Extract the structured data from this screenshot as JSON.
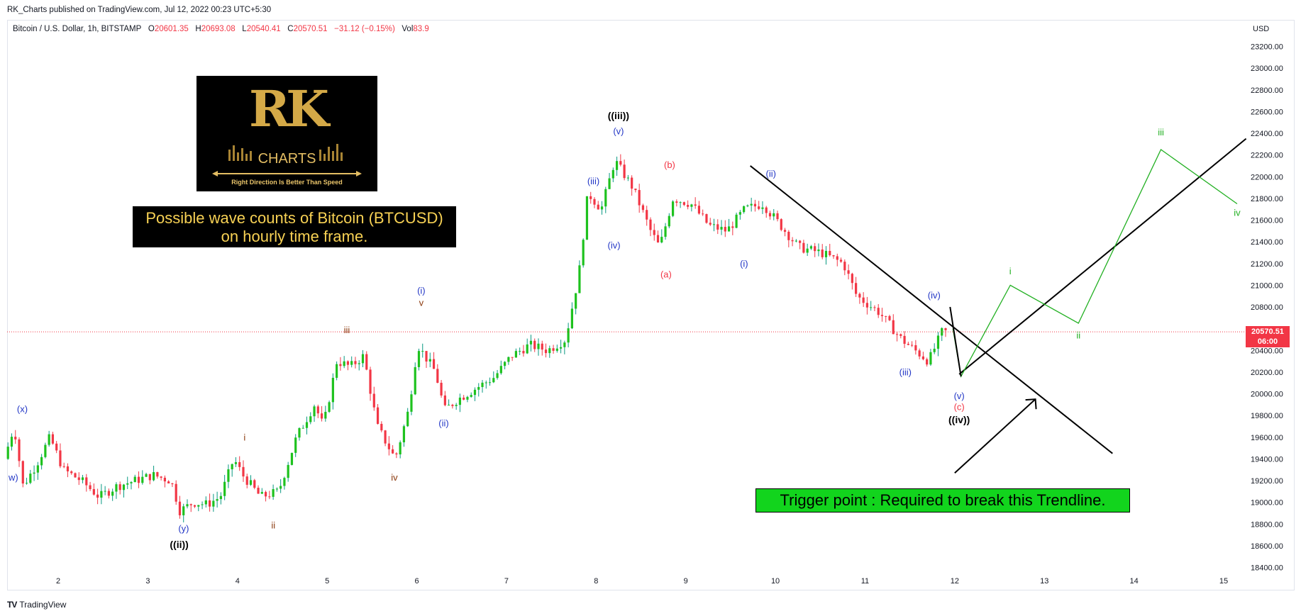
{
  "header": {
    "published_text": "RK_Charts published on TradingView.com, Jul 12, 2022 00:23 UTC+5:30"
  },
  "legend": {
    "symbol": "Bitcoin / U.S. Dollar, 1h, BITSTAMP",
    "open_label": "O",
    "open": "20601.35",
    "high_label": "H",
    "high": "20693.08",
    "low_label": "L",
    "low": "20540.41",
    "close_label": "C",
    "close": "20570.51",
    "change": "−31.12 (−0.15%)",
    "vol_label": "Vol",
    "vol": "83.9"
  },
  "currency": "USD",
  "price_tag": {
    "price": "20570.51",
    "countdown": "06:00"
  },
  "logo": {
    "letters": "RK",
    "name": "CHARTS",
    "tagline": "Right Direction Is Better Than Speed"
  },
  "wave_note": {
    "line1": "Possible wave counts of Bitcoin (BTCUSD)",
    "line2": "on hourly time frame."
  },
  "trigger_note": "Trigger point : Required to break this Trendline.",
  "footer": {
    "brand": "TradingView"
  },
  "colors": {
    "up": "#089981",
    "up_body": "#1ec21e",
    "down": "#f23645",
    "blue": "#2337c6",
    "brown": "#8b3a0e",
    "green": "#22b022",
    "red": "#f23645",
    "black": "#000000",
    "axis_text": "#131722"
  },
  "chart_data": {
    "type": "candlestick",
    "symbol": "BTCUSD",
    "interval": "1h",
    "ylabel": "USD",
    "ylim": [
      18300,
      23300
    ],
    "y_ticks": [
      18400,
      18600,
      18800,
      19000,
      19200,
      19400,
      19600,
      19800,
      20000,
      20200,
      20400,
      20600,
      20800,
      21000,
      21200,
      21400,
      21600,
      21800,
      22000,
      22200,
      22400,
      22600,
      22800,
      23000,
      23200
    ],
    "x_ticks": [
      "2",
      "3",
      "4",
      "5",
      "6",
      "7",
      "8",
      "9",
      "10",
      "11",
      "12",
      "13",
      "14",
      "15"
    ],
    "xlim": [
      1.43,
      15.25
    ],
    "last_price": 20570.51,
    "price_path": [
      [
        1.44,
        19400
      ],
      [
        1.55,
        19700
      ],
      [
        1.65,
        19150
      ],
      [
        1.8,
        19350
      ],
      [
        1.95,
        19600
      ],
      [
        2.1,
        19300
      ],
      [
        2.3,
        19200
      ],
      [
        2.5,
        19050
      ],
      [
        2.7,
        19150
      ],
      [
        2.9,
        19200
      ],
      [
        3.1,
        19250
      ],
      [
        3.3,
        19200
      ],
      [
        3.4,
        18920
      ],
      [
        3.55,
        19000
      ],
      [
        3.7,
        18980
      ],
      [
        3.85,
        19050
      ],
      [
        4.0,
        19400
      ],
      [
        4.1,
        19250
      ],
      [
        4.3,
        19050
      ],
      [
        4.5,
        19100
      ],
      [
        4.7,
        19600
      ],
      [
        4.9,
        19900
      ],
      [
        5.0,
        19700
      ],
      [
        5.15,
        20300
      ],
      [
        5.3,
        20250
      ],
      [
        5.45,
        20350
      ],
      [
        5.6,
        19700
      ],
      [
        5.8,
        19400
      ],
      [
        5.95,
        19850
      ],
      [
        6.05,
        20450
      ],
      [
        6.25,
        20200
      ],
      [
        6.35,
        19850
      ],
      [
        6.5,
        19950
      ],
      [
        6.7,
        20050
      ],
      [
        6.9,
        20150
      ],
      [
        7.1,
        20350
      ],
      [
        7.3,
        20450
      ],
      [
        7.5,
        20400
      ],
      [
        7.7,
        20500
      ],
      [
        7.85,
        21100
      ],
      [
        7.95,
        21850
      ],
      [
        8.1,
        21700
      ],
      [
        8.25,
        22150
      ],
      [
        8.45,
        21900
      ],
      [
        8.65,
        21500
      ],
      [
        8.75,
        21350
      ],
      [
        8.9,
        21800
      ],
      [
        9.1,
        21750
      ],
      [
        9.3,
        21550
      ],
      [
        9.5,
        21500
      ],
      [
        9.7,
        21700
      ],
      [
        9.9,
        21750
      ],
      [
        10.05,
        21600
      ],
      [
        10.3,
        21350
      ],
      [
        10.55,
        21300
      ],
      [
        10.8,
        21200
      ],
      [
        10.95,
        20900
      ],
      [
        11.2,
        20750
      ],
      [
        11.45,
        20500
      ],
      [
        11.6,
        20400
      ],
      [
        11.75,
        20300
      ],
      [
        11.9,
        20570
      ]
    ],
    "trendlines": [
      {
        "color": "black",
        "from": [
          9.72,
          22100
        ],
        "to": [
          13.76,
          19450
        ]
      },
      {
        "color": "black",
        "from": [
          12.05,
          20180
        ],
        "to": [
          15.25,
          22350
        ]
      }
    ],
    "projection": {
      "color": "green",
      "points": [
        [
          11.98,
          20600
        ],
        [
          12.07,
          20160
        ],
        [
          12.62,
          21000
        ],
        [
          13.38,
          20650
        ],
        [
          14.3,
          22250
        ],
        [
          15.15,
          21750
        ]
      ]
    },
    "current_price_line": 20570.51,
    "annotations": [
      {
        "text": "(x)",
        "x": 1.6,
        "y": 19830,
        "color": "blue"
      },
      {
        "text": "w)",
        "x": 1.5,
        "y": 19200,
        "color": "blue"
      },
      {
        "text": "(y)",
        "x": 3.4,
        "y": 18730,
        "color": "blue"
      },
      {
        "text": "((ii))",
        "x": 3.35,
        "y": 18580,
        "color": "black"
      },
      {
        "text": "i",
        "x": 4.08,
        "y": 19570,
        "color": "brown"
      },
      {
        "text": "ii",
        "x": 4.4,
        "y": 18760,
        "color": "brown"
      },
      {
        "text": "iii",
        "x": 5.22,
        "y": 20560,
        "color": "brown"
      },
      {
        "text": "iv",
        "x": 5.75,
        "y": 19200,
        "color": "brown"
      },
      {
        "text": "v",
        "x": 6.05,
        "y": 20810,
        "color": "brown"
      },
      {
        "text": "(i)",
        "x": 6.05,
        "y": 20920,
        "color": "blue"
      },
      {
        "text": "(ii)",
        "x": 6.3,
        "y": 19700,
        "color": "blue"
      },
      {
        "text": "(iii)",
        "x": 7.97,
        "y": 21930,
        "color": "blue"
      },
      {
        "text": "(iv)",
        "x": 8.2,
        "y": 21340,
        "color": "blue"
      },
      {
        "text": "(v)",
        "x": 8.25,
        "y": 22390,
        "color": "blue"
      },
      {
        "text": "((iii))",
        "x": 8.25,
        "y": 22530,
        "color": "black"
      },
      {
        "text": "(b)",
        "x": 8.82,
        "y": 22080,
        "color": "red"
      },
      {
        "text": "(a)",
        "x": 8.78,
        "y": 21070,
        "color": "red"
      },
      {
        "text": "(ii)",
        "x": 9.95,
        "y": 22000,
        "color": "blue"
      },
      {
        "text": "(i)",
        "x": 9.65,
        "y": 21170,
        "color": "blue"
      },
      {
        "text": "(iii)",
        "x": 11.45,
        "y": 20170,
        "color": "blue"
      },
      {
        "text": "(iv)",
        "x": 11.77,
        "y": 20880,
        "color": "blue"
      },
      {
        "text": "(v)",
        "x": 12.05,
        "y": 19950,
        "color": "blue"
      },
      {
        "text": "(c)",
        "x": 12.05,
        "y": 19850,
        "color": "red"
      },
      {
        "text": "((iv))",
        "x": 12.05,
        "y": 19730,
        "color": "black"
      },
      {
        "text": "i",
        "x": 12.62,
        "y": 21100,
        "color": "green"
      },
      {
        "text": "ii",
        "x": 13.38,
        "y": 20510,
        "color": "green"
      },
      {
        "text": "iii",
        "x": 14.3,
        "y": 22380,
        "color": "green"
      },
      {
        "text": "iv",
        "x": 15.15,
        "y": 21640,
        "color": "green"
      }
    ],
    "arrow": {
      "from": [
        12.0,
        19270
      ],
      "to": [
        12.9,
        19950
      ],
      "color": "black"
    }
  }
}
